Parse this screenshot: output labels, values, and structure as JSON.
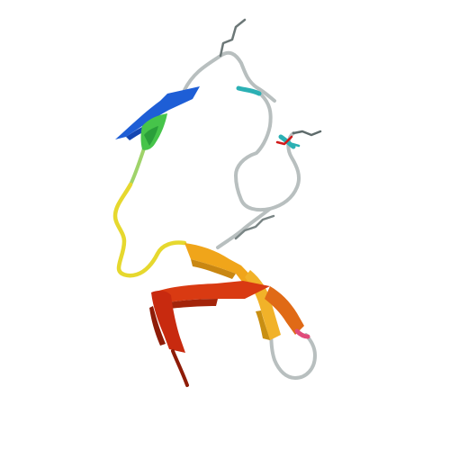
{
  "image": {
    "kind": "protein-cartoon-rendering",
    "background": "#ffffff",
    "palette": {
      "loop": "#b7bdbd",
      "blue": "#1f5fd6",
      "teal": "#2aa7b8",
      "green": "#3fbf3a",
      "yellow": "#e7d62c",
      "orange": "#f2a51a",
      "red": "#cc2a10",
      "pink": "#e04b7a",
      "stick_dark": "#5a6a6a",
      "stick_red": "#d11a1a"
    }
  }
}
